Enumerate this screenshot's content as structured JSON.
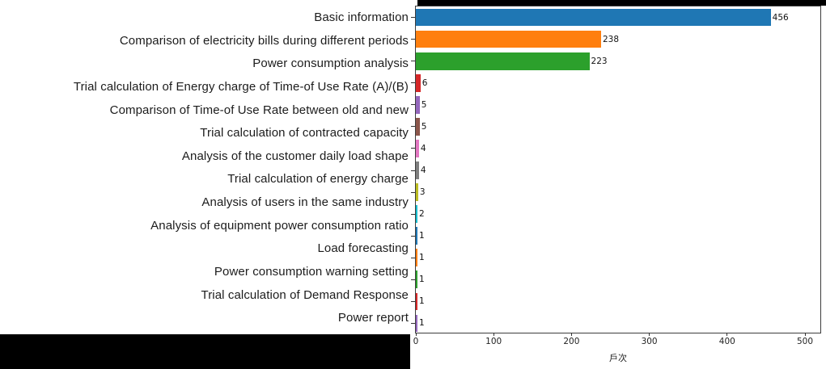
{
  "chart_data": {
    "type": "bar",
    "orientation": "horizontal",
    "title": "",
    "xlabel": "戶次",
    "ylabel": "",
    "xlim": [
      0,
      520
    ],
    "x_ticks": [
      0,
      100,
      200,
      300,
      400,
      500
    ],
    "grid": false,
    "legend": "none",
    "value_labels_shown": true,
    "bars": [
      {
        "label": "Basic information",
        "value": 456,
        "color": "#1f77b4"
      },
      {
        "label": "Comparison of electricity bills during different periods",
        "value": 238,
        "color": "#ff7f0e"
      },
      {
        "label": "Power consumption analysis",
        "value": 223,
        "color": "#2ca02c"
      },
      {
        "label": "Trial calculation of Energy charge of Time-of Use Rate (A)/(B)",
        "value": 6,
        "color": "#d62728"
      },
      {
        "label": "Comparison of Time-of Use Rate between old and new",
        "value": 5,
        "color": "#9467bd"
      },
      {
        "label": "Trial calculation of contracted capacity",
        "value": 5,
        "color": "#8c564b"
      },
      {
        "label": "Analysis of the customer daily load shape",
        "value": 4,
        "color": "#e377c2"
      },
      {
        "label": "Trial calculation of energy charge",
        "value": 4,
        "color": "#7f7f7f"
      },
      {
        "label": "Analysis of users in the same industry",
        "value": 3,
        "color": "#bcbd22"
      },
      {
        "label": "Analysis of equipment power consumption ratio",
        "value": 2,
        "color": "#17becf"
      },
      {
        "label": "Load forecasting",
        "value": 1,
        "color": "#1f77b4"
      },
      {
        "label": "Power consumption warning setting",
        "value": 1,
        "color": "#ff7f0e"
      },
      {
        "label": "Trial calculation of Demand Response",
        "value": 1,
        "color": "#2ca02c"
      },
      {
        "label": "Power report",
        "value": 1,
        "color": "#d62728"
      },
      {
        "label": null,
        "value": 1,
        "color": "#9467bd"
      }
    ]
  }
}
